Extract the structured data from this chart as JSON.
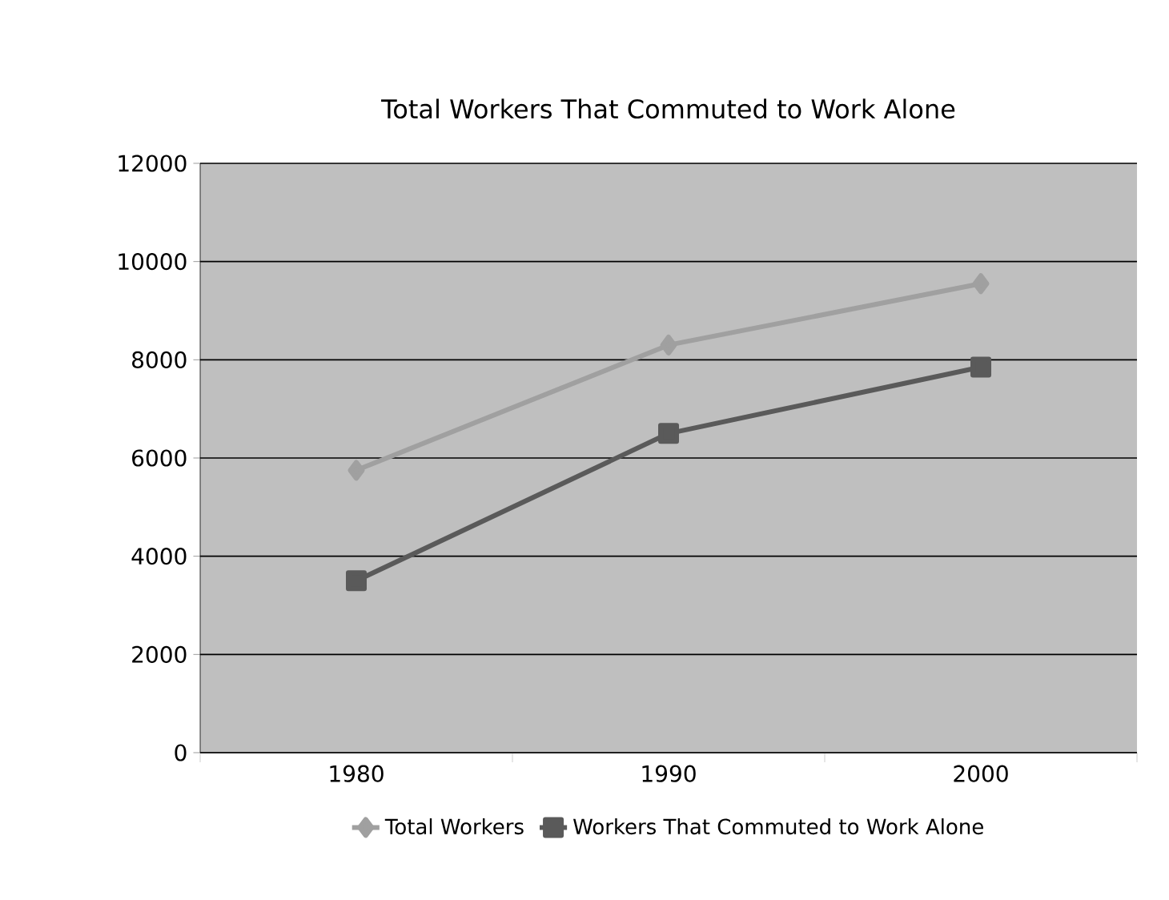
{
  "chart_data": {
    "type": "line",
    "title": "Total Workers That Commuted to Work Alone",
    "categories": [
      "1980",
      "1990",
      "2000"
    ],
    "series": [
      {
        "name": "Total Workers",
        "color": "#a0a0a0",
        "marker": "diamond",
        "values": [
          5750,
          8300,
          9550
        ]
      },
      {
        "name": "Workers That Commuted to Work Alone",
        "color": "#5a5a5a",
        "marker": "square",
        "values": [
          3500,
          6500,
          7850
        ]
      }
    ],
    "ylim": [
      0,
      12000
    ],
    "yticks": [
      0,
      2000,
      4000,
      6000,
      8000,
      10000,
      12000
    ],
    "grid": "y",
    "legend": "bottom"
  }
}
